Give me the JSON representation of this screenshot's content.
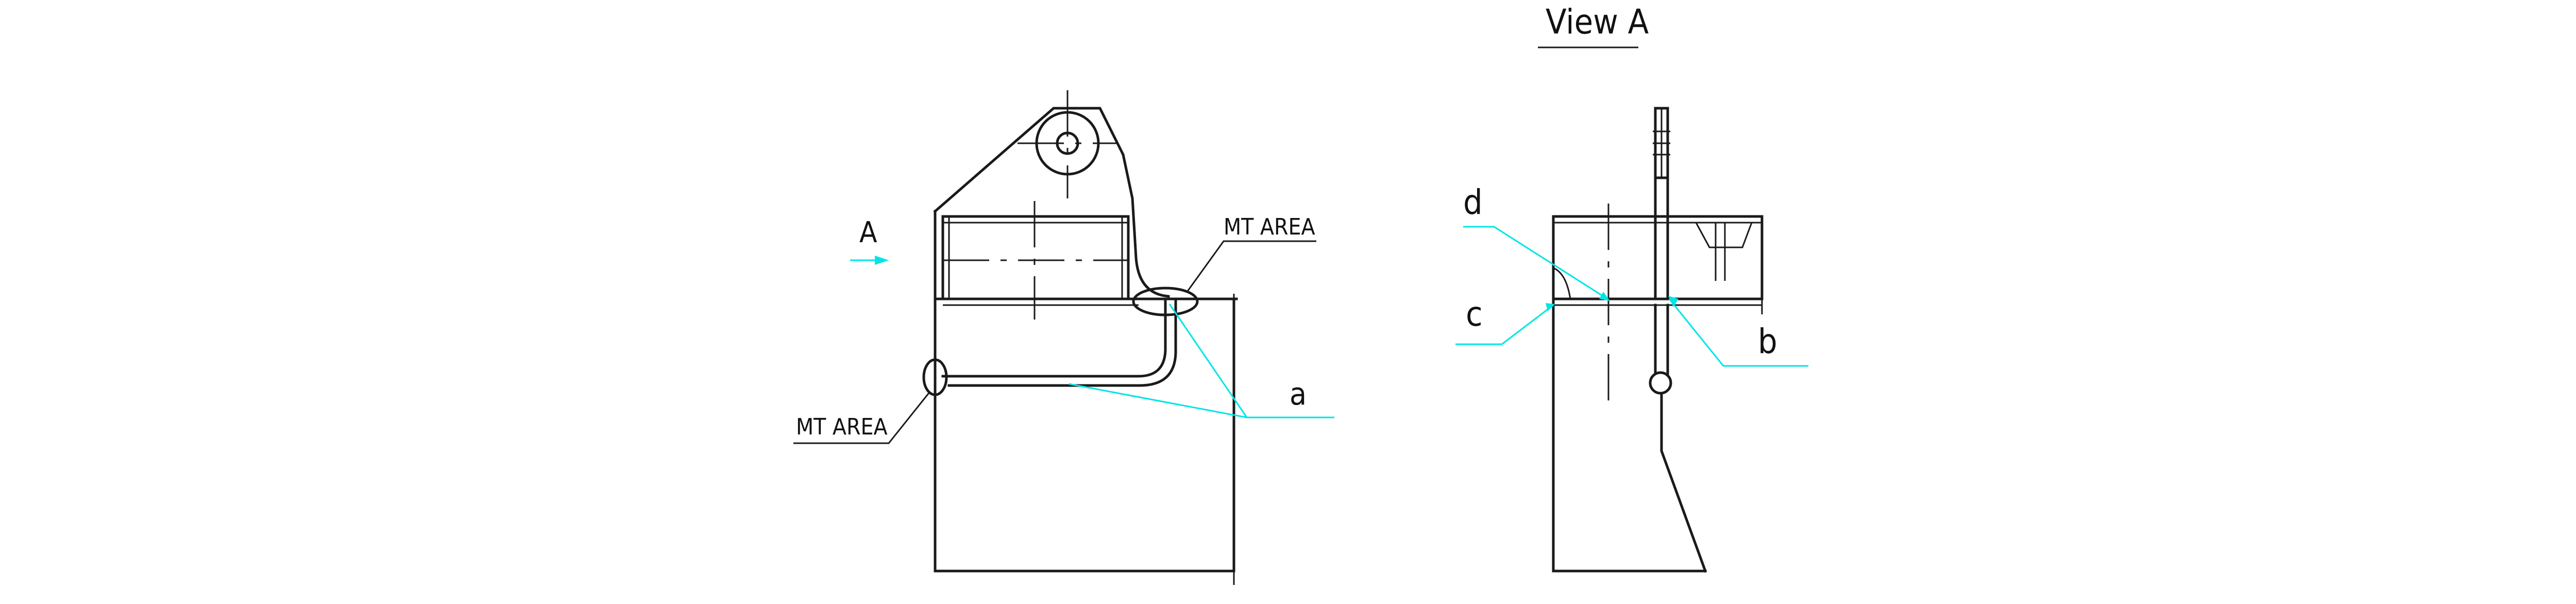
{
  "labels": {
    "view_title": "View A",
    "view_arrow": "A",
    "mt_area_top": "MT AREA",
    "mt_area_left": "MT AREA",
    "weld_a": "a",
    "weld_b": "b",
    "weld_c": "c",
    "weld_d": "d"
  },
  "colors": {
    "line": "#1a1a1a",
    "leader": "#00e5e5",
    "background": "#ffffff"
  }
}
